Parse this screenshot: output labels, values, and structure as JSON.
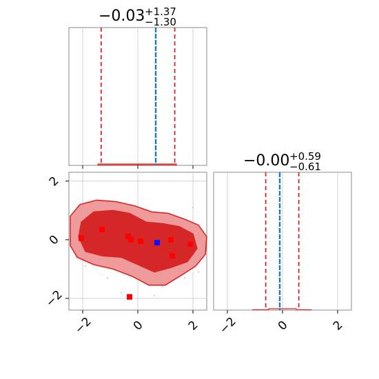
{
  "chart_data": [
    {
      "panel": "top-left",
      "type": "histogram",
      "title_main": "−0.03",
      "title_sup": "+1.37",
      "title_sub": "−1.30",
      "median": -0.03,
      "lower_err": 1.3,
      "upper_err": 1.37,
      "quantiles": [
        -1.33,
        1.34
      ],
      "truth": 0.65,
      "xlim": [
        -2.5,
        2.5
      ],
      "x_ticks": [
        -2,
        0,
        2
      ],
      "x_tick_labels": [],
      "grid": true,
      "colors": {
        "quantile": "#d62728",
        "truth": "#1f77b4",
        "hist": "#d62728"
      }
    },
    {
      "panel": "bottom-left",
      "type": "contour",
      "xlim": [
        -2.5,
        2.5
      ],
      "ylim": [
        -2.4,
        2.3
      ],
      "x_ticks": [
        -2,
        0,
        2
      ],
      "x_tick_labels": [
        "−2",
        "0",
        "2"
      ],
      "y_ticks": [
        -2,
        0,
        2
      ],
      "y_tick_labels": [
        "−2",
        "0",
        "2"
      ],
      "grid": true,
      "points": [
        {
          "x": -1.3,
          "y": 0.35,
          "color": "red"
        },
        {
          "x": -2.05,
          "y": 0.05,
          "color": "red"
        },
        {
          "x": -0.35,
          "y": 0.12,
          "color": "red"
        },
        {
          "x": -0.25,
          "y": 0.0,
          "color": "red"
        },
        {
          "x": 0.1,
          "y": -0.05,
          "color": "red"
        },
        {
          "x": 0.7,
          "y": -0.1,
          "color": "blue"
        },
        {
          "x": 1.25,
          "y": -0.55,
          "color": "red"
        },
        {
          "x": 1.9,
          "y": -0.15,
          "color": "red"
        },
        {
          "x": 1.2,
          "y": 0.0,
          "color": "red"
        },
        {
          "x": -0.3,
          "y": -1.95,
          "color": "red"
        }
      ],
      "colors": {
        "contour": "#d62728",
        "inner_fill": "#d62728",
        "outer_fill": "#ef9a9b"
      }
    },
    {
      "panel": "bottom-right",
      "type": "histogram",
      "title_main": "−0.00",
      "title_sup": "+0.59",
      "title_sub": "−0.61",
      "median": 0.0,
      "lower_err": 0.61,
      "upper_err": 0.59,
      "quantiles": [
        -0.61,
        0.59
      ],
      "truth": -0.1,
      "xlim": [
        -2.5,
        2.5
      ],
      "x_ticks": [
        -2,
        0,
        2
      ],
      "x_tick_labels": [
        "−2",
        "0",
        "2"
      ],
      "grid": true,
      "colors": {
        "quantile": "#d62728",
        "truth": "#1f77b4",
        "hist": "#d62728"
      }
    }
  ]
}
